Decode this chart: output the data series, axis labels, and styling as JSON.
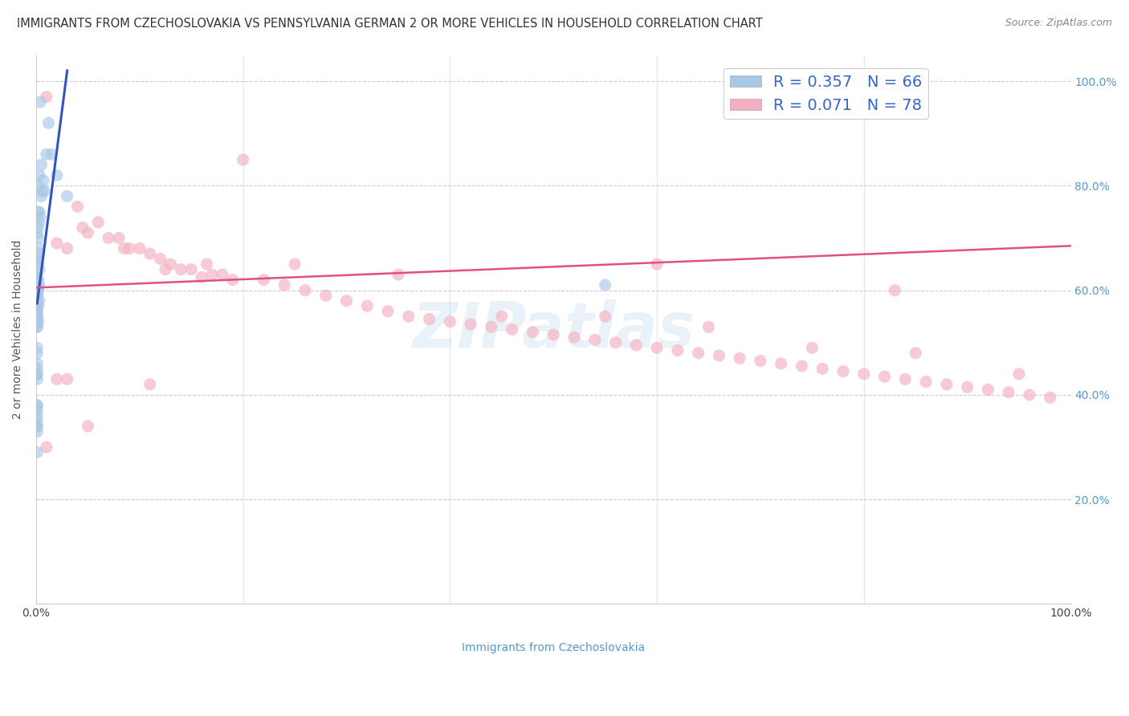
{
  "title": "IMMIGRANTS FROM CZECHOSLOVAKIA VS PENNSYLVANIA GERMAN 2 OR MORE VEHICLES IN HOUSEHOLD CORRELATION CHART",
  "source": "Source: ZipAtlas.com",
  "ylabel": "2 or more Vehicles in Household",
  "legend_r1": "R = 0.357",
  "legend_n1": "N = 66",
  "legend_r2": "R = 0.071",
  "legend_n2": "N = 78",
  "color_blue": "#a8c8e8",
  "color_pink": "#f4b0c0",
  "color_blue_line": "#3355bb",
  "color_pink_line": "#e05080",
  "watermark": "ZIPatlas",
  "blue_scatter_x": [
    0.004,
    0.01,
    0.005,
    0.007,
    0.003,
    0.008,
    0.002,
    0.006,
    0.005,
    0.003,
    0.002,
    0.004,
    0.003,
    0.002,
    0.001,
    0.002,
    0.003,
    0.003,
    0.001,
    0.002,
    0.003,
    0.001,
    0.002,
    0.003,
    0.002,
    0.001,
    0.003,
    0.002,
    0.001,
    0.001,
    0.002,
    0.001,
    0.001,
    0.001,
    0.001,
    0.001,
    0.001,
    0.001,
    0.001,
    0.001,
    0.001,
    0.001,
    0.001,
    0.001,
    0.001,
    0.001,
    0.001,
    0.001,
    0.001,
    0.001,
    0.001,
    0.012,
    0.015,
    0.02,
    0.03,
    0.001,
    0.001,
    0.001,
    0.001,
    0.001,
    0.001,
    0.001,
    0.001,
    0.001,
    0.001,
    0.55
  ],
  "blue_scatter_y": [
    0.96,
    0.86,
    0.84,
    0.81,
    0.82,
    0.79,
    0.8,
    0.79,
    0.78,
    0.75,
    0.75,
    0.74,
    0.73,
    0.72,
    0.71,
    0.7,
    0.68,
    0.67,
    0.66,
    0.65,
    0.64,
    0.63,
    0.62,
    0.61,
    0.6,
    0.59,
    0.58,
    0.57,
    0.56,
    0.55,
    0.54,
    0.53,
    0.62,
    0.61,
    0.6,
    0.59,
    0.58,
    0.57,
    0.56,
    0.55,
    0.54,
    0.53,
    0.62,
    0.6,
    0.59,
    0.45,
    0.44,
    0.43,
    0.48,
    0.34,
    0.38,
    0.92,
    0.86,
    0.82,
    0.78,
    0.49,
    0.46,
    0.38,
    0.33,
    0.29,
    0.34,
    0.37,
    0.36,
    0.35,
    0.44,
    0.61
  ],
  "pink_scatter_x": [
    0.01,
    0.2,
    0.04,
    0.06,
    0.08,
    0.1,
    0.12,
    0.14,
    0.16,
    0.18,
    0.22,
    0.24,
    0.26,
    0.28,
    0.3,
    0.32,
    0.34,
    0.36,
    0.38,
    0.4,
    0.42,
    0.44,
    0.46,
    0.48,
    0.5,
    0.52,
    0.54,
    0.56,
    0.58,
    0.6,
    0.62,
    0.64,
    0.66,
    0.68,
    0.7,
    0.72,
    0.74,
    0.76,
    0.78,
    0.8,
    0.82,
    0.84,
    0.86,
    0.88,
    0.9,
    0.92,
    0.94,
    0.96,
    0.98,
    0.03,
    0.05,
    0.07,
    0.09,
    0.11,
    0.13,
    0.15,
    0.17,
    0.19,
    0.02,
    0.045,
    0.085,
    0.125,
    0.165,
    0.25,
    0.35,
    0.45,
    0.55,
    0.65,
    0.75,
    0.85,
    0.95,
    0.11,
    0.6,
    0.83,
    0.01,
    0.02,
    0.03,
    0.05
  ],
  "pink_scatter_y": [
    0.97,
    0.85,
    0.76,
    0.73,
    0.7,
    0.68,
    0.66,
    0.64,
    0.625,
    0.63,
    0.62,
    0.61,
    0.6,
    0.59,
    0.58,
    0.57,
    0.56,
    0.55,
    0.545,
    0.54,
    0.535,
    0.53,
    0.525,
    0.52,
    0.515,
    0.51,
    0.505,
    0.5,
    0.495,
    0.49,
    0.485,
    0.48,
    0.475,
    0.47,
    0.465,
    0.46,
    0.455,
    0.45,
    0.445,
    0.44,
    0.435,
    0.43,
    0.425,
    0.42,
    0.415,
    0.41,
    0.405,
    0.4,
    0.395,
    0.68,
    0.71,
    0.7,
    0.68,
    0.67,
    0.65,
    0.64,
    0.63,
    0.62,
    0.69,
    0.72,
    0.68,
    0.64,
    0.65,
    0.65,
    0.63,
    0.55,
    0.55,
    0.53,
    0.49,
    0.48,
    0.44,
    0.42,
    0.65,
    0.6,
    0.3,
    0.43,
    0.43,
    0.34
  ],
  "xlim": [
    0.0,
    1.0
  ],
  "ylim": [
    0.0,
    1.05
  ],
  "ytick_positions": [
    0.2,
    0.4,
    0.6,
    0.8,
    1.0
  ],
  "ytick_labels": [
    "20.0%",
    "40.0%",
    "60.0%",
    "80.0%",
    "100.0%"
  ],
  "xtick_positions": [
    0.0,
    0.2,
    0.4,
    0.6,
    0.8,
    1.0
  ],
  "xtick_labels": [
    "0.0%",
    "",
    "",
    "",
    "",
    "100.0%"
  ],
  "blue_line_x": [
    0.001,
    0.03
  ],
  "blue_line_y": [
    0.575,
    1.02
  ],
  "pink_line_x": [
    0.0,
    1.0
  ],
  "pink_line_y": [
    0.605,
    0.685
  ]
}
